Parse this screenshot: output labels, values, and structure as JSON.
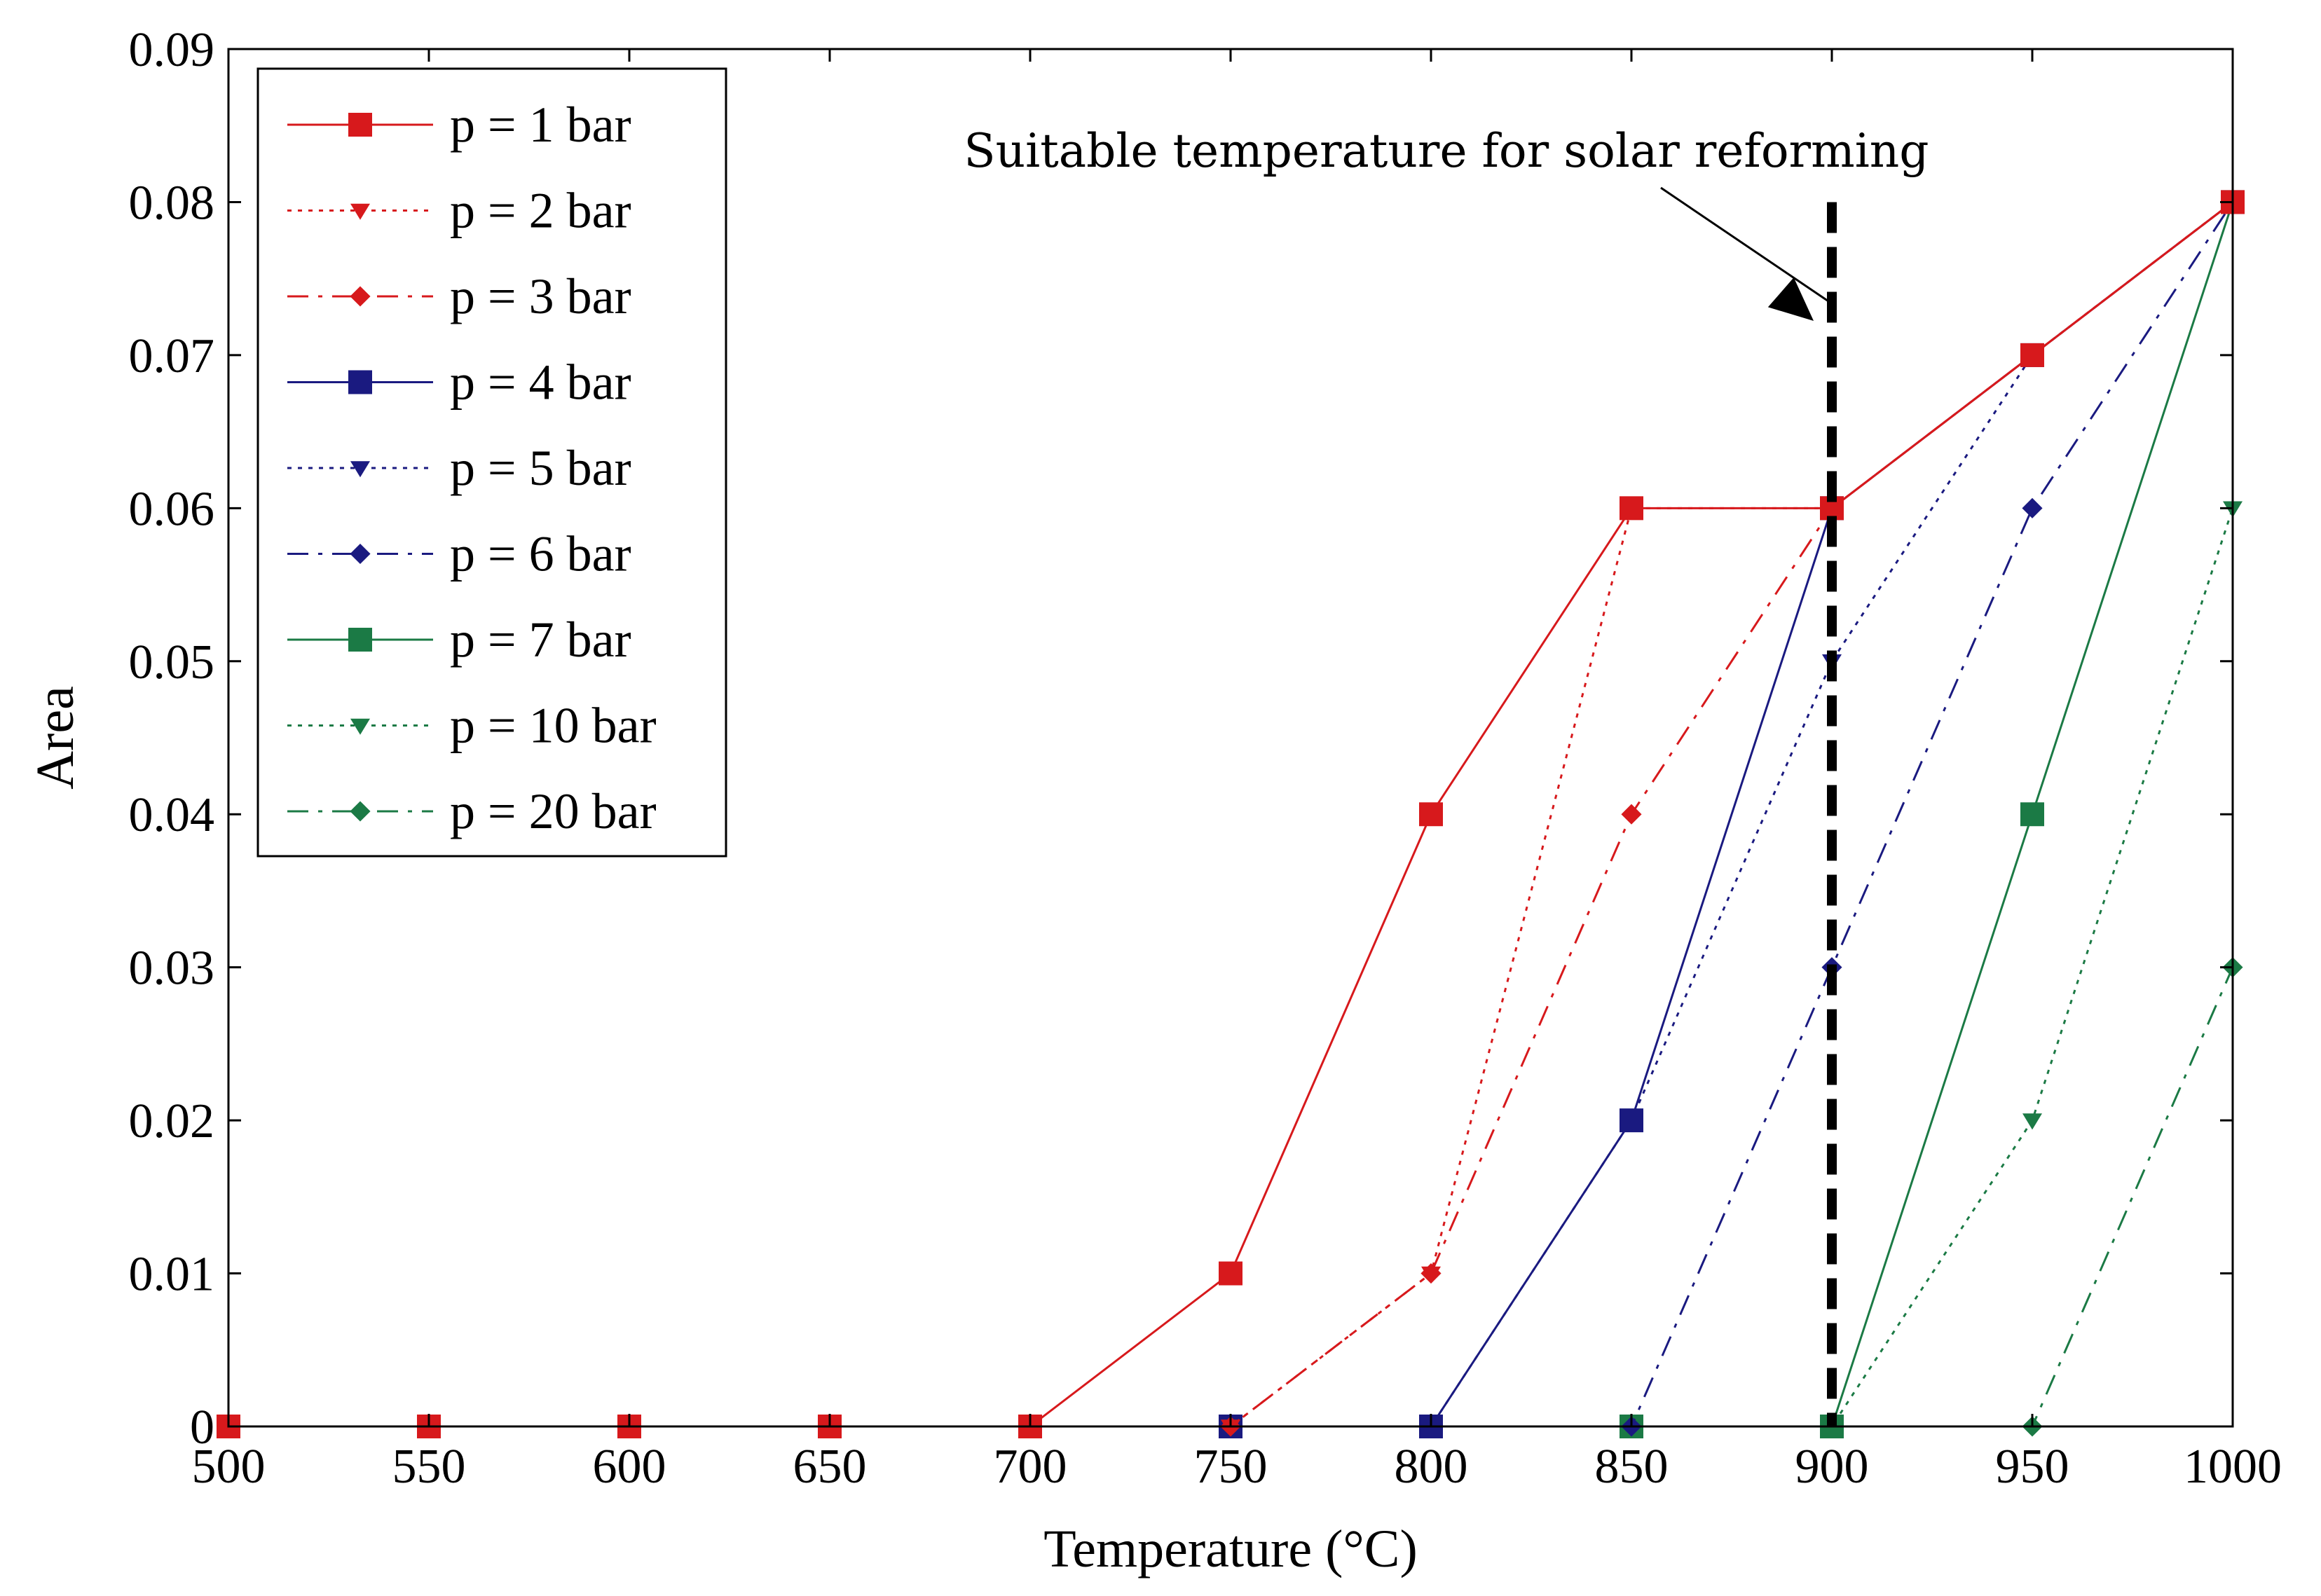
{
  "chart_data": {
    "type": "line",
    "title": "",
    "xlabel": "Temperature (°C)",
    "ylabel": "Area",
    "xlim": [
      500,
      1000
    ],
    "ylim": [
      0,
      0.09
    ],
    "xticks": [
      500,
      550,
      600,
      650,
      700,
      750,
      800,
      850,
      900,
      950,
      1000
    ],
    "yticks": [
      0,
      0.01,
      0.02,
      0.03,
      0.04,
      0.05,
      0.06,
      0.07,
      0.08,
      0.09
    ],
    "xtick_labels": [
      "500",
      "550",
      "600",
      "650",
      "700",
      "750",
      "800",
      "850",
      "900",
      "950",
      "1000"
    ],
    "ytick_labels": [
      "0",
      "0.01",
      "0.02",
      "0.03",
      "0.04",
      "0.05",
      "0.06",
      "0.07",
      "0.08",
      "0.09"
    ],
    "grid": false,
    "legend_position": "top-left",
    "x": [
      500,
      550,
      600,
      650,
      700,
      750,
      800,
      850,
      900,
      950,
      1000
    ],
    "series": [
      {
        "name": "p = 1 bar",
        "color": "#d7191c",
        "dash": "solid",
        "marker": "square",
        "values": [
          0,
          0,
          0,
          0,
          0,
          0.01,
          0.04,
          0.06,
          0.06,
          0.07,
          0.08
        ]
      },
      {
        "name": "p = 2 bar",
        "color": "#d7191c",
        "dash": "dotted",
        "marker": "triangle",
        "values": [
          0,
          0,
          0,
          0,
          0,
          0,
          0.01,
          0.06,
          0.06,
          0.07,
          0.08
        ]
      },
      {
        "name": "p = 3 bar",
        "color": "#d7191c",
        "dash": "dashdot",
        "marker": "diamond",
        "values": [
          0,
          0,
          0,
          0,
          0,
          0,
          0.01,
          0.04,
          0.06,
          0.07,
          0.08
        ]
      },
      {
        "name": "p = 4 bar",
        "color": "#1a1a80",
        "dash": "solid",
        "marker": "square",
        "values": [
          0,
          0,
          0,
          0,
          0,
          0,
          0,
          0.02,
          0.06,
          0.07,
          0.08
        ]
      },
      {
        "name": "p = 5 bar",
        "color": "#1a1a80",
        "dash": "dotted",
        "marker": "triangle",
        "values": [
          0,
          0,
          0,
          0,
          0,
          0,
          0,
          0.02,
          0.05,
          0.07,
          0.08
        ]
      },
      {
        "name": "p = 6 bar",
        "color": "#1a1a80",
        "dash": "dashdot",
        "marker": "diamond",
        "values": [
          0,
          0,
          0,
          0,
          0,
          0,
          0,
          0,
          0.03,
          0.06,
          0.08
        ]
      },
      {
        "name": "p = 7 bar",
        "color": "#1b7a45",
        "dash": "solid",
        "marker": "square",
        "values": [
          0,
          0,
          0,
          0,
          0,
          0,
          0,
          0,
          0,
          0.04,
          0.08
        ]
      },
      {
        "name": "p = 10 bar",
        "color": "#1b7a45",
        "dash": "dotted",
        "marker": "triangle",
        "values": [
          0,
          0,
          0,
          0,
          0,
          0,
          0,
          0,
          0,
          0.02,
          0.06
        ]
      },
      {
        "name": "p = 20 bar",
        "color": "#1b7a45",
        "dash": "dashdot",
        "marker": "diamond",
        "values": [
          0,
          0,
          0,
          0,
          0,
          0,
          0,
          0,
          0,
          0,
          0.03
        ]
      }
    ],
    "reference_line": {
      "x": 900,
      "y_top": 0.08,
      "style": "dashed",
      "color": "#000000"
    },
    "annotations": [
      {
        "text": "Suitable temperature for solar reforming",
        "points_to_x": 900
      }
    ]
  }
}
